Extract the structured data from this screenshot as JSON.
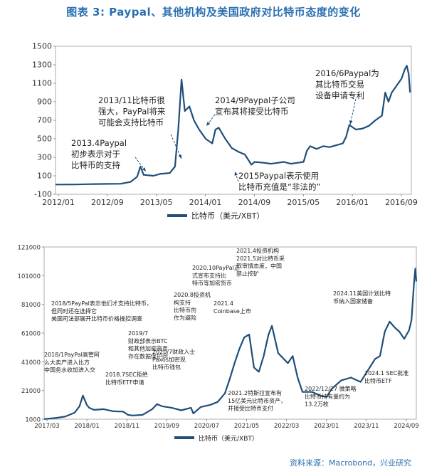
{
  "title": "图表 3:   Paypal、其他机构及美国政府对比特币态度的变化",
  "source": "资料来源：Macrobond，兴业研究",
  "colors": {
    "title": "#2a6fb0",
    "line": "#1f4e79",
    "text": "#222222",
    "axis": "#555555"
  },
  "chart_data": [
    {
      "type": "line",
      "ylim": [
        -100,
        1500
      ],
      "yticks": [
        -100,
        100,
        300,
        500,
        700,
        900,
        1100,
        1300,
        1500
      ],
      "xticks": [
        "2012/01",
        "2012/09",
        "2013/05",
        "2014/01",
        "2014/09",
        "2015/05",
        "2016/01",
        "2016/09"
      ],
      "xlim": [
        2012.0,
        2017.45
      ],
      "legend": "比特币（美元/XBT）",
      "series": [
        {
          "name": "比特币（美元/XBT）",
          "x": [
            2012.0,
            2012.3,
            2012.6,
            2012.8,
            2013.0,
            2013.15,
            2013.25,
            2013.3,
            2013.35,
            2013.5,
            2013.6,
            2013.75,
            2013.83,
            2013.88,
            2013.93,
            2013.98,
            2014.05,
            2014.12,
            2014.2,
            2014.3,
            2014.4,
            2014.45,
            2014.5,
            2014.6,
            2014.7,
            2014.8,
            2014.9,
            2015.0,
            2015.05,
            2015.2,
            2015.3,
            2015.4,
            2015.5,
            2015.6,
            2015.7,
            2015.8,
            2015.85,
            2015.9,
            2016.0,
            2016.1,
            2016.2,
            2016.3,
            2016.4,
            2016.45,
            2016.5,
            2016.6,
            2016.7,
            2016.8,
            2016.9,
            2017.0,
            2017.05,
            2017.1,
            2017.15,
            2017.2,
            2017.25,
            2017.3,
            2017.35,
            2017.38,
            2017.41,
            2017.43
          ],
          "values": [
            5,
            6,
            11,
            12,
            14,
            34,
            90,
            200,
            110,
            100,
            120,
            130,
            200,
            600,
            1140,
            800,
            850,
            700,
            600,
            500,
            450,
            600,
            620,
            500,
            400,
            360,
            330,
            220,
            250,
            240,
            230,
            240,
            250,
            230,
            240,
            250,
            370,
            420,
            390,
            420,
            410,
            430,
            450,
            520,
            650,
            600,
            610,
            640,
            700,
            750,
            1000,
            900,
            1000,
            1050,
            1100,
            1150,
            1250,
            1290,
            1200,
            1000
          ],
          "end_label": "",
          "annotations": [
            {
              "lines": [
                "2013.4Paypal",
                "初步表示对于",
                "比特币的支持"
              ]
            },
            {
              "lines": [
                "2013/11比特币很",
                "强大，PayPal将来",
                "可能会支持比特币"
              ]
            },
            {
              "lines": [
                "2014/9Paypal子公司",
                "宣布其将接受比特币"
              ]
            },
            {
              "lines": [
                "2015Paypal表示使用",
                "比特币充值是“非法的”"
              ]
            },
            {
              "lines": [
                "2016/6Paypal为",
                "其比特币交易",
                "设备申请专利"
              ]
            }
          ]
        }
      ]
    },
    {
      "type": "line",
      "ylim": [
        1000,
        121000
      ],
      "yticks": [
        1000,
        21000,
        41000,
        61000,
        81000,
        101000,
        121000
      ],
      "xticks": [
        "2017/03",
        "2018/01",
        "2018/11",
        "2019/09",
        "2020/07",
        "2021/05",
        "2022/03",
        "2023/01",
        "2023/11",
        "2024/09"
      ],
      "xlim": [
        2017.17,
        2024.85
      ],
      "legend": "比特币（美元/XBT）",
      "series": [
        {
          "name": "比特币（美元/XBT）",
          "x": [
            2017.17,
            2017.4,
            2017.6,
            2017.8,
            2017.9,
            2017.97,
            2018.05,
            2018.1,
            2018.2,
            2018.4,
            2018.6,
            2018.8,
            2018.9,
            2019.0,
            2019.2,
            2019.4,
            2019.5,
            2019.6,
            2019.8,
            2020.0,
            2020.2,
            2020.25,
            2020.4,
            2020.6,
            2020.75,
            2020.9,
            2021.0,
            2021.1,
            2021.2,
            2021.3,
            2021.4,
            2021.5,
            2021.6,
            2021.7,
            2021.8,
            2021.87,
            2022.0,
            2022.2,
            2022.3,
            2022.4,
            2022.5,
            2022.7,
            2022.9,
            2023.0,
            2023.1,
            2023.3,
            2023.5,
            2023.7,
            2023.85,
            2024.0,
            2024.1,
            2024.2,
            2024.3,
            2024.4,
            2024.5,
            2024.6,
            2024.7,
            2024.75,
            2024.8,
            2024.83,
            2024.85
          ],
          "values": [
            1100,
            1800,
            2800,
            5500,
            10000,
            17500,
            11000,
            9000,
            7500,
            8000,
            6500,
            6300,
            4000,
            3600,
            4000,
            8000,
            11500,
            10000,
            9000,
            7200,
            9000,
            5000,
            9500,
            11000,
            13000,
            19000,
            29000,
            40000,
            50000,
            58000,
            60000,
            37000,
            34000,
            45000,
            60000,
            66000,
            47000,
            40000,
            45000,
            30000,
            20000,
            20000,
            17000,
            16500,
            22000,
            28000,
            30000,
            27000,
            35000,
            43000,
            45000,
            62000,
            69000,
            65000,
            62000,
            57000,
            63000,
            70000,
            95000,
            106000,
            97000
          ],
          "end_label": "",
          "annotations": [
            {
              "lines": [
                "2018/1PayPal高管阿",
                "么大卖产进入比方",
                "中国务水收加进入交"
              ]
            },
            {
              "lines": [
                "2018/5PayPal表示他们才支持比特币，",
                "但同时还在选择它",
                "美国司法部展开比特币价格操控调查"
              ]
            },
            {
              "lines": [
                "2019/7",
                "财政部表示BTC",
                "和其他加密货币",
                "存在数据保护问"
              ]
            },
            {
              "lines": [
                "2018.7SEC拒绝",
                "比特币ETF申请"
              ]
            },
            {
              "lines": [
                "2020/7财政入士",
                "Paxos加密现",
                "比特币钱包"
              ]
            },
            {
              "lines": [
                "2020.10PayPal正",
                "式宣布支持比",
                "特币等加密货币"
              ]
            },
            {
              "lines": [
                "2020.8投资机",
                "构支持",
                "比特币的",
                "作为避险"
              ]
            },
            {
              "lines": [
                "2021.4",
                "Coinbase上市"
              ]
            },
            {
              "lines": [
                "2021.4投资机构",
                "2021.5对比特币采",
                "取审慎态度，中国",
                "禁止挖矿"
              ]
            },
            {
              "lines": [
                "2021.2特斯拉宣布有",
                "15亿美元比特币资产，",
                "并接受比特币支付"
              ]
            },
            {
              "lines": [
                "2022/12/27 微策略",
                "比特币持有量约为",
                "13.2万枚"
              ]
            },
            {
              "lines": [
                "2024.11美国计划比特",
                "币纳入国家储备"
              ]
            },
            {
              "lines": [
                "2024.1 SEC批准",
                "比特币ETF"
              ]
            }
          ]
        }
      ]
    }
  ]
}
